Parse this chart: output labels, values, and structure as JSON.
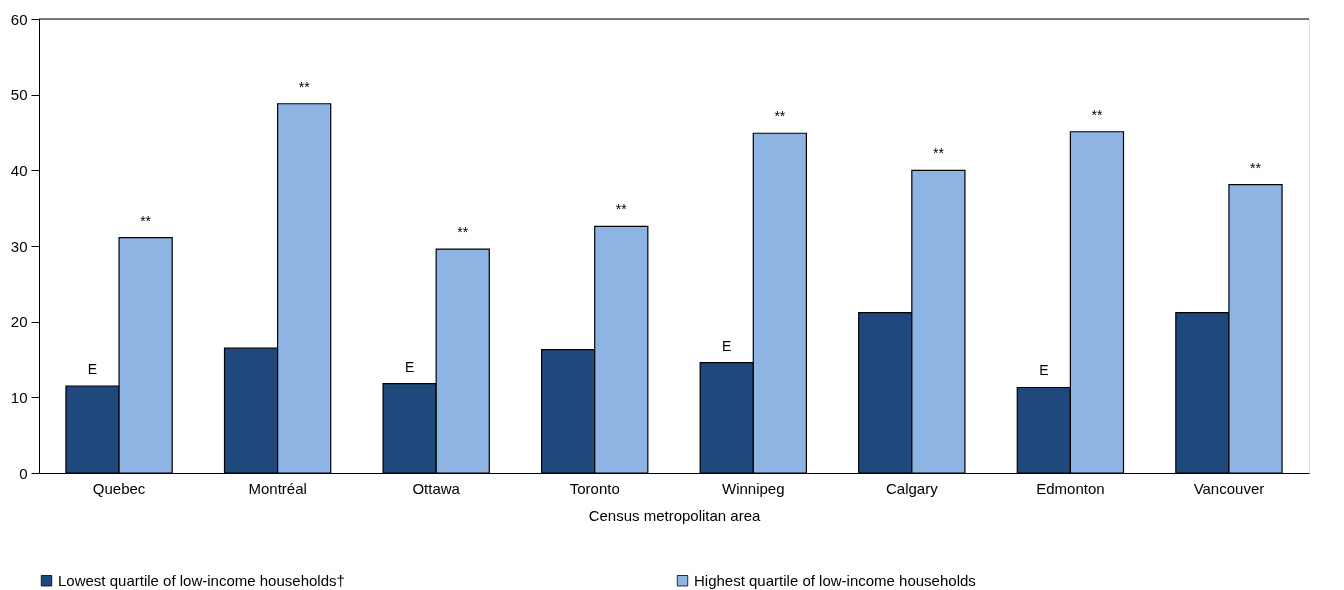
{
  "chart_data": {
    "type": "bar",
    "xlabel": "Census metropolitan area",
    "categories": [
      "Quebec",
      "Montréal",
      "Ottawa",
      "Toronto",
      "Winnipeg",
      "Calgary",
      "Edmonton",
      "Vancouver"
    ],
    "series": [
      {
        "name": "Lowest quartile of low-income households†",
        "color": "#1f497d",
        "values": [
          11.5,
          16.5,
          11.8,
          16.3,
          14.6,
          21.2,
          11.3,
          21.2
        ]
      },
      {
        "name": "Highest quartile of low-income households",
        "color": "#8eb4e3",
        "values": [
          31.1,
          48.8,
          29.6,
          32.6,
          44.9,
          40.0,
          45.1,
          38.1
        ]
      }
    ],
    "ylim": [
      0,
      60
    ],
    "yticks": [
      0,
      10,
      20,
      30,
      40,
      50,
      60
    ],
    "grid": false,
    "legend": "bottom",
    "annotations": [
      {
        "text": "E",
        "x": "Quebec",
        "y": 11.5
      },
      {
        "text": "**",
        "x": "Quebec",
        "y": 31.1
      },
      {
        "text": "**",
        "x": "Montréal",
        "y": 48.8
      },
      {
        "text": "E",
        "x": "Ottawa",
        "y": 11.8
      },
      {
        "text": "**",
        "x": "Ottawa",
        "y": 29.6
      },
      {
        "text": "**",
        "x": "Toronto",
        "y": 32.6
      },
      {
        "text": "E",
        "x": "Winnipeg",
        "y": 14.6
      },
      {
        "text": "**",
        "x": "Winnipeg",
        "y": 44.9
      },
      {
        "text": "**",
        "x": "Calgary",
        "y": 40.0
      },
      {
        "text": "E",
        "x": "Edmonton",
        "y": 11.3
      },
      {
        "text": "**",
        "x": "Edmonton",
        "y": 45.1
      },
      {
        "text": "**",
        "x": "Vancouver",
        "y": 38.1
      }
    ]
  }
}
